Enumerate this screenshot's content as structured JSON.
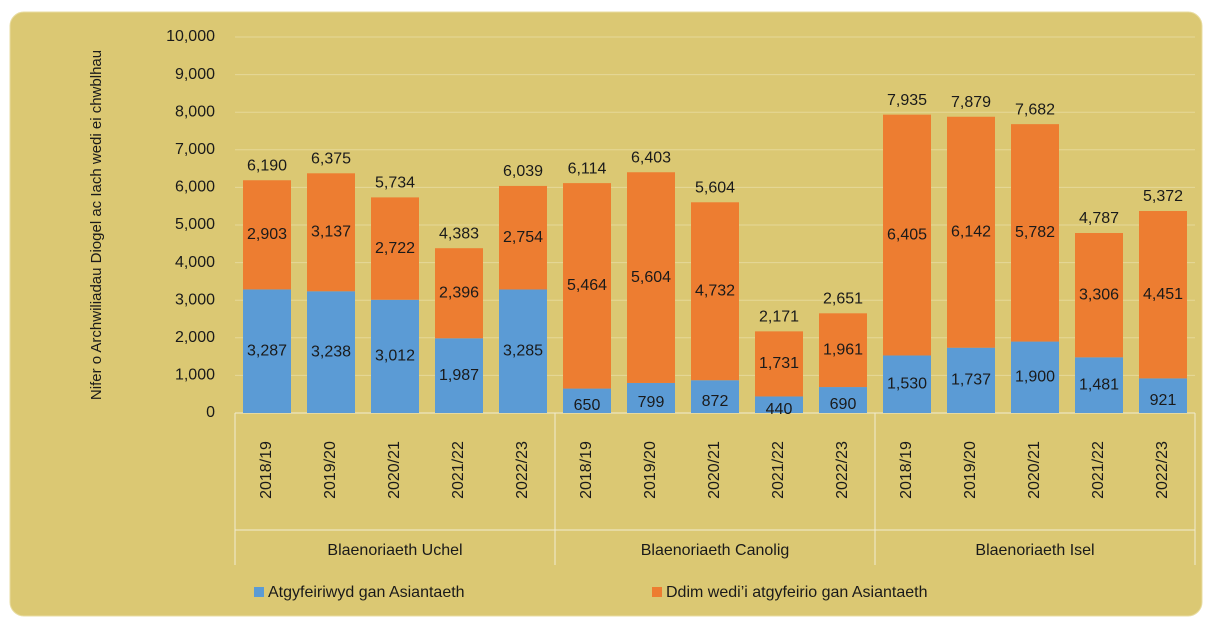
{
  "chart_data": {
    "type": "stacked-bar",
    "y_label": "Nifer o Archwiliadau Diogel ac Iach wedi ei chwblhau",
    "groups": [
      {
        "name": "Blaenoriaeth Uchel",
        "categories": [
          "2018/19",
          "2019/20",
          "2020/21",
          "2021/22",
          "2022/23"
        ]
      },
      {
        "name": "Blaenoriaeth Canolig",
        "categories": [
          "2018/19",
          "2019/20",
          "2020/21",
          "2021/22",
          "2022/23"
        ]
      },
      {
        "name": "Blaenoriaeth Isel",
        "categories": [
          "2018/19",
          "2019/20",
          "2020/21",
          "2021/22",
          "2022/23"
        ]
      }
    ],
    "series": [
      {
        "name": "Atgyfeiriwyd gan Asiantaeth",
        "color": "#5b9bd5",
        "values": [
          3287,
          3238,
          3012,
          1987,
          3285,
          650,
          799,
          872,
          440,
          690,
          1530,
          1737,
          1900,
          1481,
          921
        ],
        "value_labels": [
          "3,287",
          "3,238",
          "3,012",
          "1,987",
          "3,285",
          "650",
          "799",
          "872",
          "440",
          "690",
          "1,530",
          "1,737",
          "1,900",
          "1,481",
          "921"
        ]
      },
      {
        "name": "Ddim wedi’i atgyfeirio gan Asiantaeth",
        "color": "#ed7d31",
        "values": [
          2903,
          3137,
          2722,
          2396,
          2754,
          5464,
          5604,
          4732,
          1731,
          1961,
          6405,
          6142,
          5782,
          3306,
          4451
        ],
        "value_labels": [
          "2,903",
          "3,137",
          "2,722",
          "2,396",
          "2,754",
          "5,464",
          "5,604",
          "4,732",
          "1,731",
          "1,961",
          "6,405",
          "6,142",
          "5,782",
          "3,306",
          "4,451"
        ]
      }
    ],
    "totals": [
      6190,
      6375,
      5734,
      4383,
      6039,
      6114,
      6403,
      5604,
      2171,
      2651,
      7935,
      7879,
      7682,
      4787,
      5372
    ],
    "total_labels": [
      "6,190",
      "6,375",
      "5,734",
      "4,383",
      "6,039",
      "6,114",
      "6,403",
      "5,604",
      "2,171",
      "2,651",
      "7,935",
      "7,879",
      "7,682",
      "4,787",
      "5,372"
    ],
    "ylim": [
      0,
      10000
    ],
    "yticks": [
      0,
      {
        "value": 1000,
        "label": "1,000"
      },
      {
        "value": 2000,
        "label": "2,000"
      },
      {
        "value": 3000,
        "label": "3,000"
      },
      {
        "value": 4000,
        "label": "4,000"
      },
      {
        "value": 5000,
        "label": "5,000"
      },
      {
        "value": 6000,
        "label": "6,000"
      },
      {
        "value": 7000,
        "label": "7,000"
      },
      {
        "value": 8000,
        "label": "8,000"
      },
      {
        "value": 9000,
        "label": "9,000"
      },
      {
        "value": 10000,
        "label": "10,000"
      }
    ],
    "grid": true,
    "legend": "bottom"
  }
}
